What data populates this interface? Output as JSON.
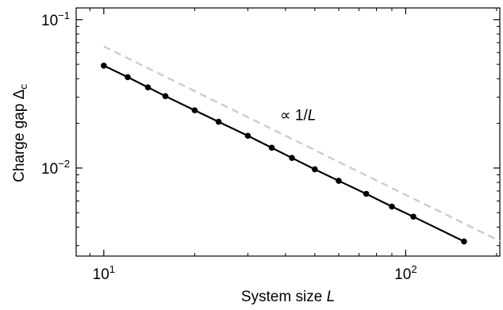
{
  "chart_data": {
    "type": "line",
    "xlabel": {
      "text": "System size ",
      "var": "L"
    },
    "ylabel": {
      "text": "Charge gap ",
      "symbol": "Δ",
      "subscript": "c"
    },
    "xscale": "log",
    "yscale": "log",
    "xlim": [
      8.1,
      205
    ],
    "ylim": [
      0.00255,
      0.12
    ],
    "grid": false,
    "x_ticks": [
      {
        "value": 10,
        "base": "10",
        "exp": "1"
      },
      {
        "value": 100,
        "base": "10",
        "exp": "2"
      }
    ],
    "y_ticks": [
      {
        "value": 0.1,
        "base": "10",
        "exp": "−1"
      },
      {
        "value": 0.01,
        "base": "10",
        "exp": "−2"
      }
    ],
    "series": [
      {
        "style": "solid-markers",
        "color": "#000000",
        "x": [
          10,
          12,
          14,
          16,
          20,
          24,
          30,
          36,
          42,
          50,
          60,
          74,
          90,
          106,
          156
        ],
        "y": [
          0.049,
          0.041,
          0.035,
          0.0305,
          0.0245,
          0.0205,
          0.0165,
          0.0137,
          0.0117,
          0.0098,
          0.0082,
          0.0067,
          0.0055,
          0.0047,
          0.0032
        ]
      },
      {
        "style": "dashed",
        "color": "#cccccc",
        "x": [
          10,
          205
        ],
        "y": [
          0.066,
          0.00322
        ]
      }
    ],
    "annotations": [
      {
        "text": "∝ 1/",
        "var": "L",
        "at_x": 44,
        "at_y": 0.0205
      }
    ]
  }
}
